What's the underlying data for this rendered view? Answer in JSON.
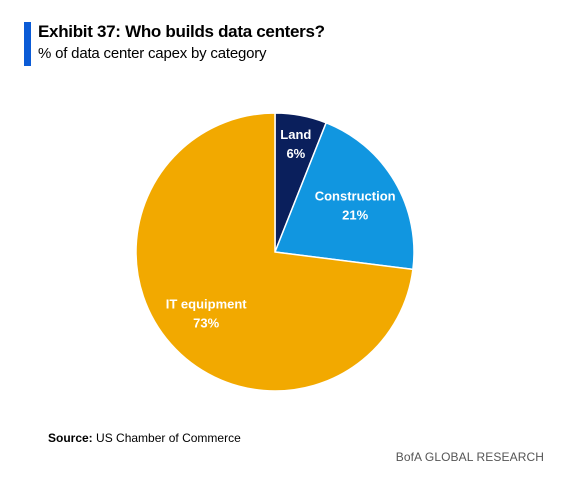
{
  "header": {
    "title": "Exhibit 37: Who builds data centers?",
    "subtitle": "% of data center capex by category",
    "accent_color": "#0b5bd6"
  },
  "chart_data": {
    "type": "pie",
    "slices": [
      {
        "label": "Land",
        "value": 6,
        "value_label": "6%",
        "color": "#0a1f5c"
      },
      {
        "label": "Construction",
        "value": 21,
        "value_label": "21%",
        "color": "#1196e0"
      },
      {
        "label": "IT equipment",
        "value": 73,
        "value_label": "73%",
        "color": "#f2a900"
      }
    ],
    "start": "12 o'clock",
    "direction": "clockwise",
    "legend": "none"
  },
  "footer": {
    "source_label": "Source:",
    "source_text": "US Chamber of Commerce",
    "brand": "BofA GLOBAL RESEARCH"
  }
}
